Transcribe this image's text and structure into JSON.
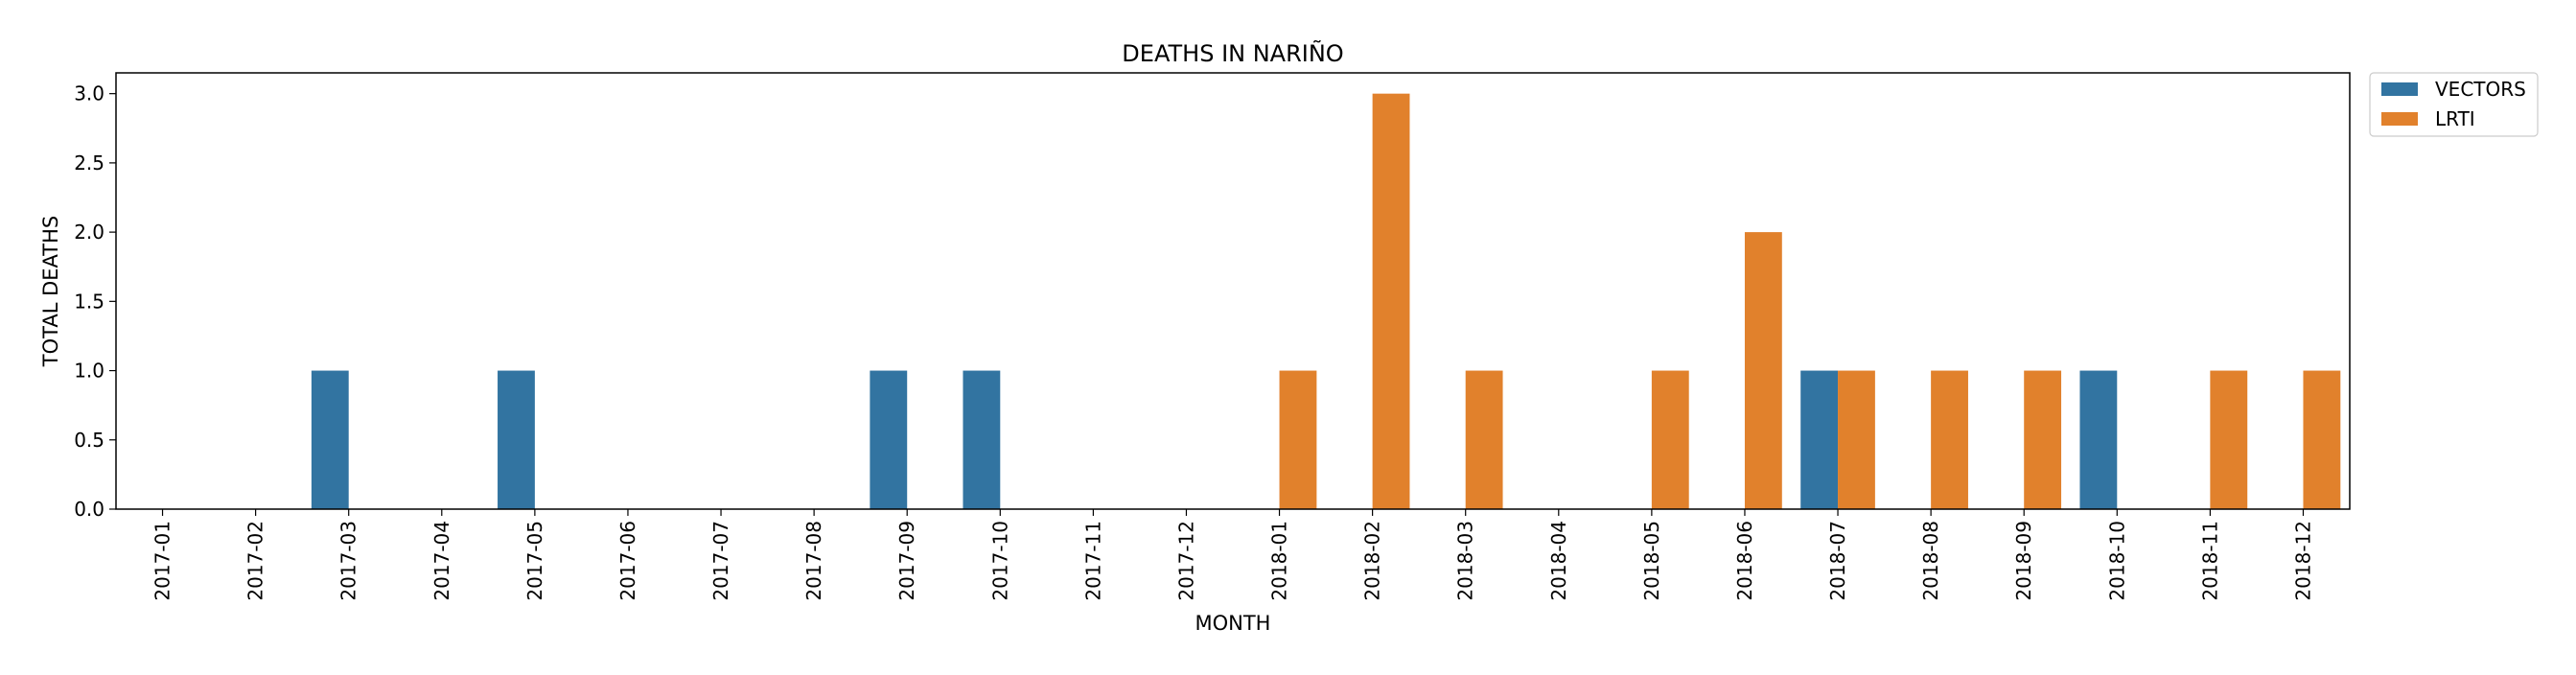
{
  "chart_data": {
    "type": "bar",
    "title": "DEATHS IN NARIÑO",
    "xlabel": "MONTH",
    "ylabel": "TOTAL DEATHS",
    "ylim": [
      0,
      3.15
    ],
    "y_ticks": [
      "0.0",
      "0.5",
      "1.0",
      "1.5",
      "2.0",
      "2.5",
      "3.0"
    ],
    "y_tick_values": [
      0,
      0.5,
      1.0,
      1.5,
      2.0,
      2.5,
      3.0
    ],
    "grid": false,
    "legend_position": "outside-top-right",
    "categories": [
      "2017-01",
      "2017-02",
      "2017-03",
      "2017-04",
      "2017-05",
      "2017-06",
      "2017-07",
      "2017-08",
      "2017-09",
      "2017-10",
      "2017-11",
      "2017-12",
      "2018-01",
      "2018-02",
      "2018-03",
      "2018-04",
      "2018-05",
      "2018-06",
      "2018-07",
      "2018-08",
      "2018-09",
      "2018-10",
      "2018-11",
      "2018-12"
    ],
    "series": [
      {
        "name": "VECTORS",
        "color": "#3274a1",
        "values": [
          0,
          0,
          1,
          0,
          1,
          0,
          0,
          0,
          1,
          1,
          0,
          0,
          0,
          0,
          0,
          0,
          0,
          0,
          1,
          0,
          0,
          1,
          0,
          0
        ]
      },
      {
        "name": "LRTI",
        "color": "#e1812c",
        "values": [
          0,
          0,
          0,
          0,
          0,
          0,
          0,
          0,
          0,
          0,
          0,
          0,
          1,
          3,
          1,
          0,
          1,
          2,
          1,
          1,
          1,
          0,
          1,
          1
        ]
      }
    ]
  }
}
